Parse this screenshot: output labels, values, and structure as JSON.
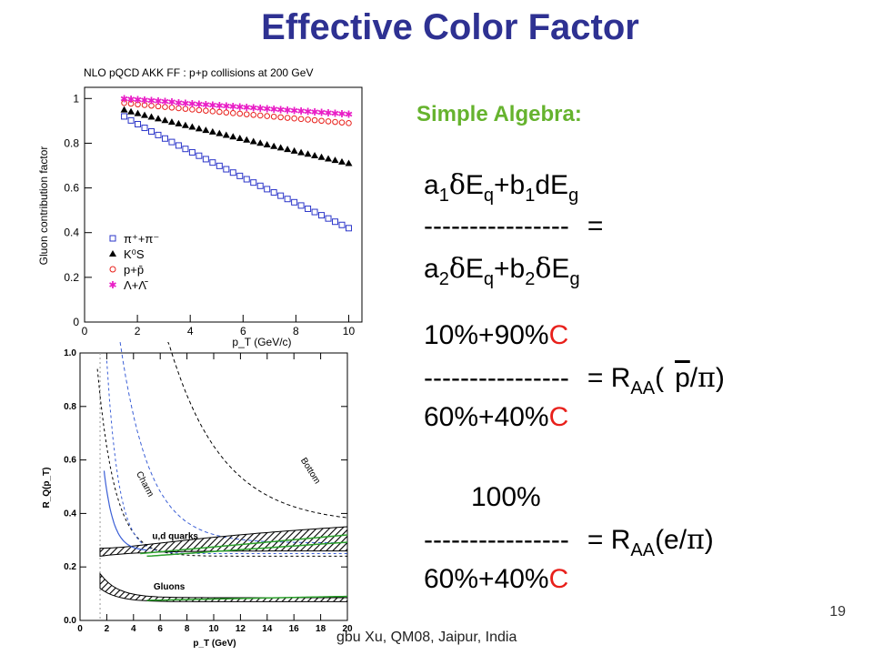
{
  "slide": {
    "title": "Effective Color Factor",
    "subtitle": "Simple Algebra:",
    "page_number": "19",
    "footer": "gbu Xu, QM08, Jaipur, India"
  },
  "equations": {
    "eq1": {
      "a": "a",
      "a_sub": "1",
      "delta": "δ",
      "E": "E",
      "q": "q",
      "plus_b": "+b",
      "b_sub": "1",
      "dE": "dE",
      "g": "g"
    },
    "dashes1": "----------------",
    "eq_sign": "=",
    "eq1_den": {
      "a": "a",
      "a_sub": "2",
      "E": "E",
      "q": "q",
      "plus_b": "+b",
      "b_sub": "2",
      "g": "g"
    },
    "eq2_num_a": "10%+90%",
    "C": "C",
    "dashes2": "----------------",
    "eq2_rhs": "= R",
    "AA": "AA",
    "eq2_ratio_p": "p",
    "slash": "/",
    "pi": "π",
    "open": "(",
    "close": ")",
    "eq2_den": "60%+40%",
    "eq3_num": "100%",
    "dashes3": "----------------",
    "eq3_rhs": "= R",
    "eq3_e": "(e/",
    "eq3_den": "60%+40%"
  },
  "chart_data": [
    {
      "type": "scatter",
      "title": "NLO pQCD AKK FF : p+p collisions at 200 GeV",
      "xlabel": "p_T (GeV/c)",
      "ylabel": "Gluon contribution factor",
      "xlim": [
        0,
        10.5
      ],
      "ylim": [
        0,
        1.05
      ],
      "x_ticks": [
        "0",
        "2",
        "4",
        "6",
        "8",
        "10"
      ],
      "y_ticks": [
        "0",
        "0.2",
        "0.4",
        "0.6",
        "0.8",
        "1"
      ],
      "legend": [
        "π⁺+π⁻",
        "K⁰S",
        "p+p̄",
        "Λ+Λ̄"
      ],
      "legend_position": "lower-left",
      "series": [
        {
          "name": "π⁺+π⁻",
          "color": "#2b35c9",
          "marker": "open-square",
          "x_start": 1.5,
          "x_end": 10,
          "y_start": 0.92,
          "y_end": 0.42
        },
        {
          "name": "K⁰S",
          "color": "#000000",
          "marker": "filled-triangle",
          "x_start": 1.5,
          "x_end": 10,
          "y_start": 0.95,
          "y_end": 0.71
        },
        {
          "name": "p+p̄",
          "color": "#e8201b",
          "marker": "open-circle",
          "x_start": 1.5,
          "x_end": 10,
          "y_start": 0.98,
          "y_end": 0.89
        },
        {
          "name": "Λ+Λ̄",
          "color": "#e91ec6",
          "marker": "star",
          "x_start": 1.5,
          "x_end": 10,
          "y_start": 1.0,
          "y_end": 0.93
        }
      ]
    },
    {
      "type": "line",
      "xlabel": "p_T (GeV)",
      "ylabel": "R_Q(p_T)",
      "xlim": [
        0,
        20
      ],
      "ylim": [
        0,
        1.0
      ],
      "x_ticks": [
        "0",
        "2",
        "4",
        "6",
        "8",
        "10",
        "12",
        "14",
        "16",
        "18",
        "20"
      ],
      "y_ticks": [
        "0.0",
        "0.2",
        "0.4",
        "0.6",
        "0.8",
        "1.0"
      ],
      "annotations": [
        "Bottom",
        "Charm",
        "u,d quarks",
        "Gluons"
      ]
    }
  ],
  "colors": {
    "title": "#2e3192",
    "subtitle": "#66b32e",
    "red": "#e8201b"
  }
}
